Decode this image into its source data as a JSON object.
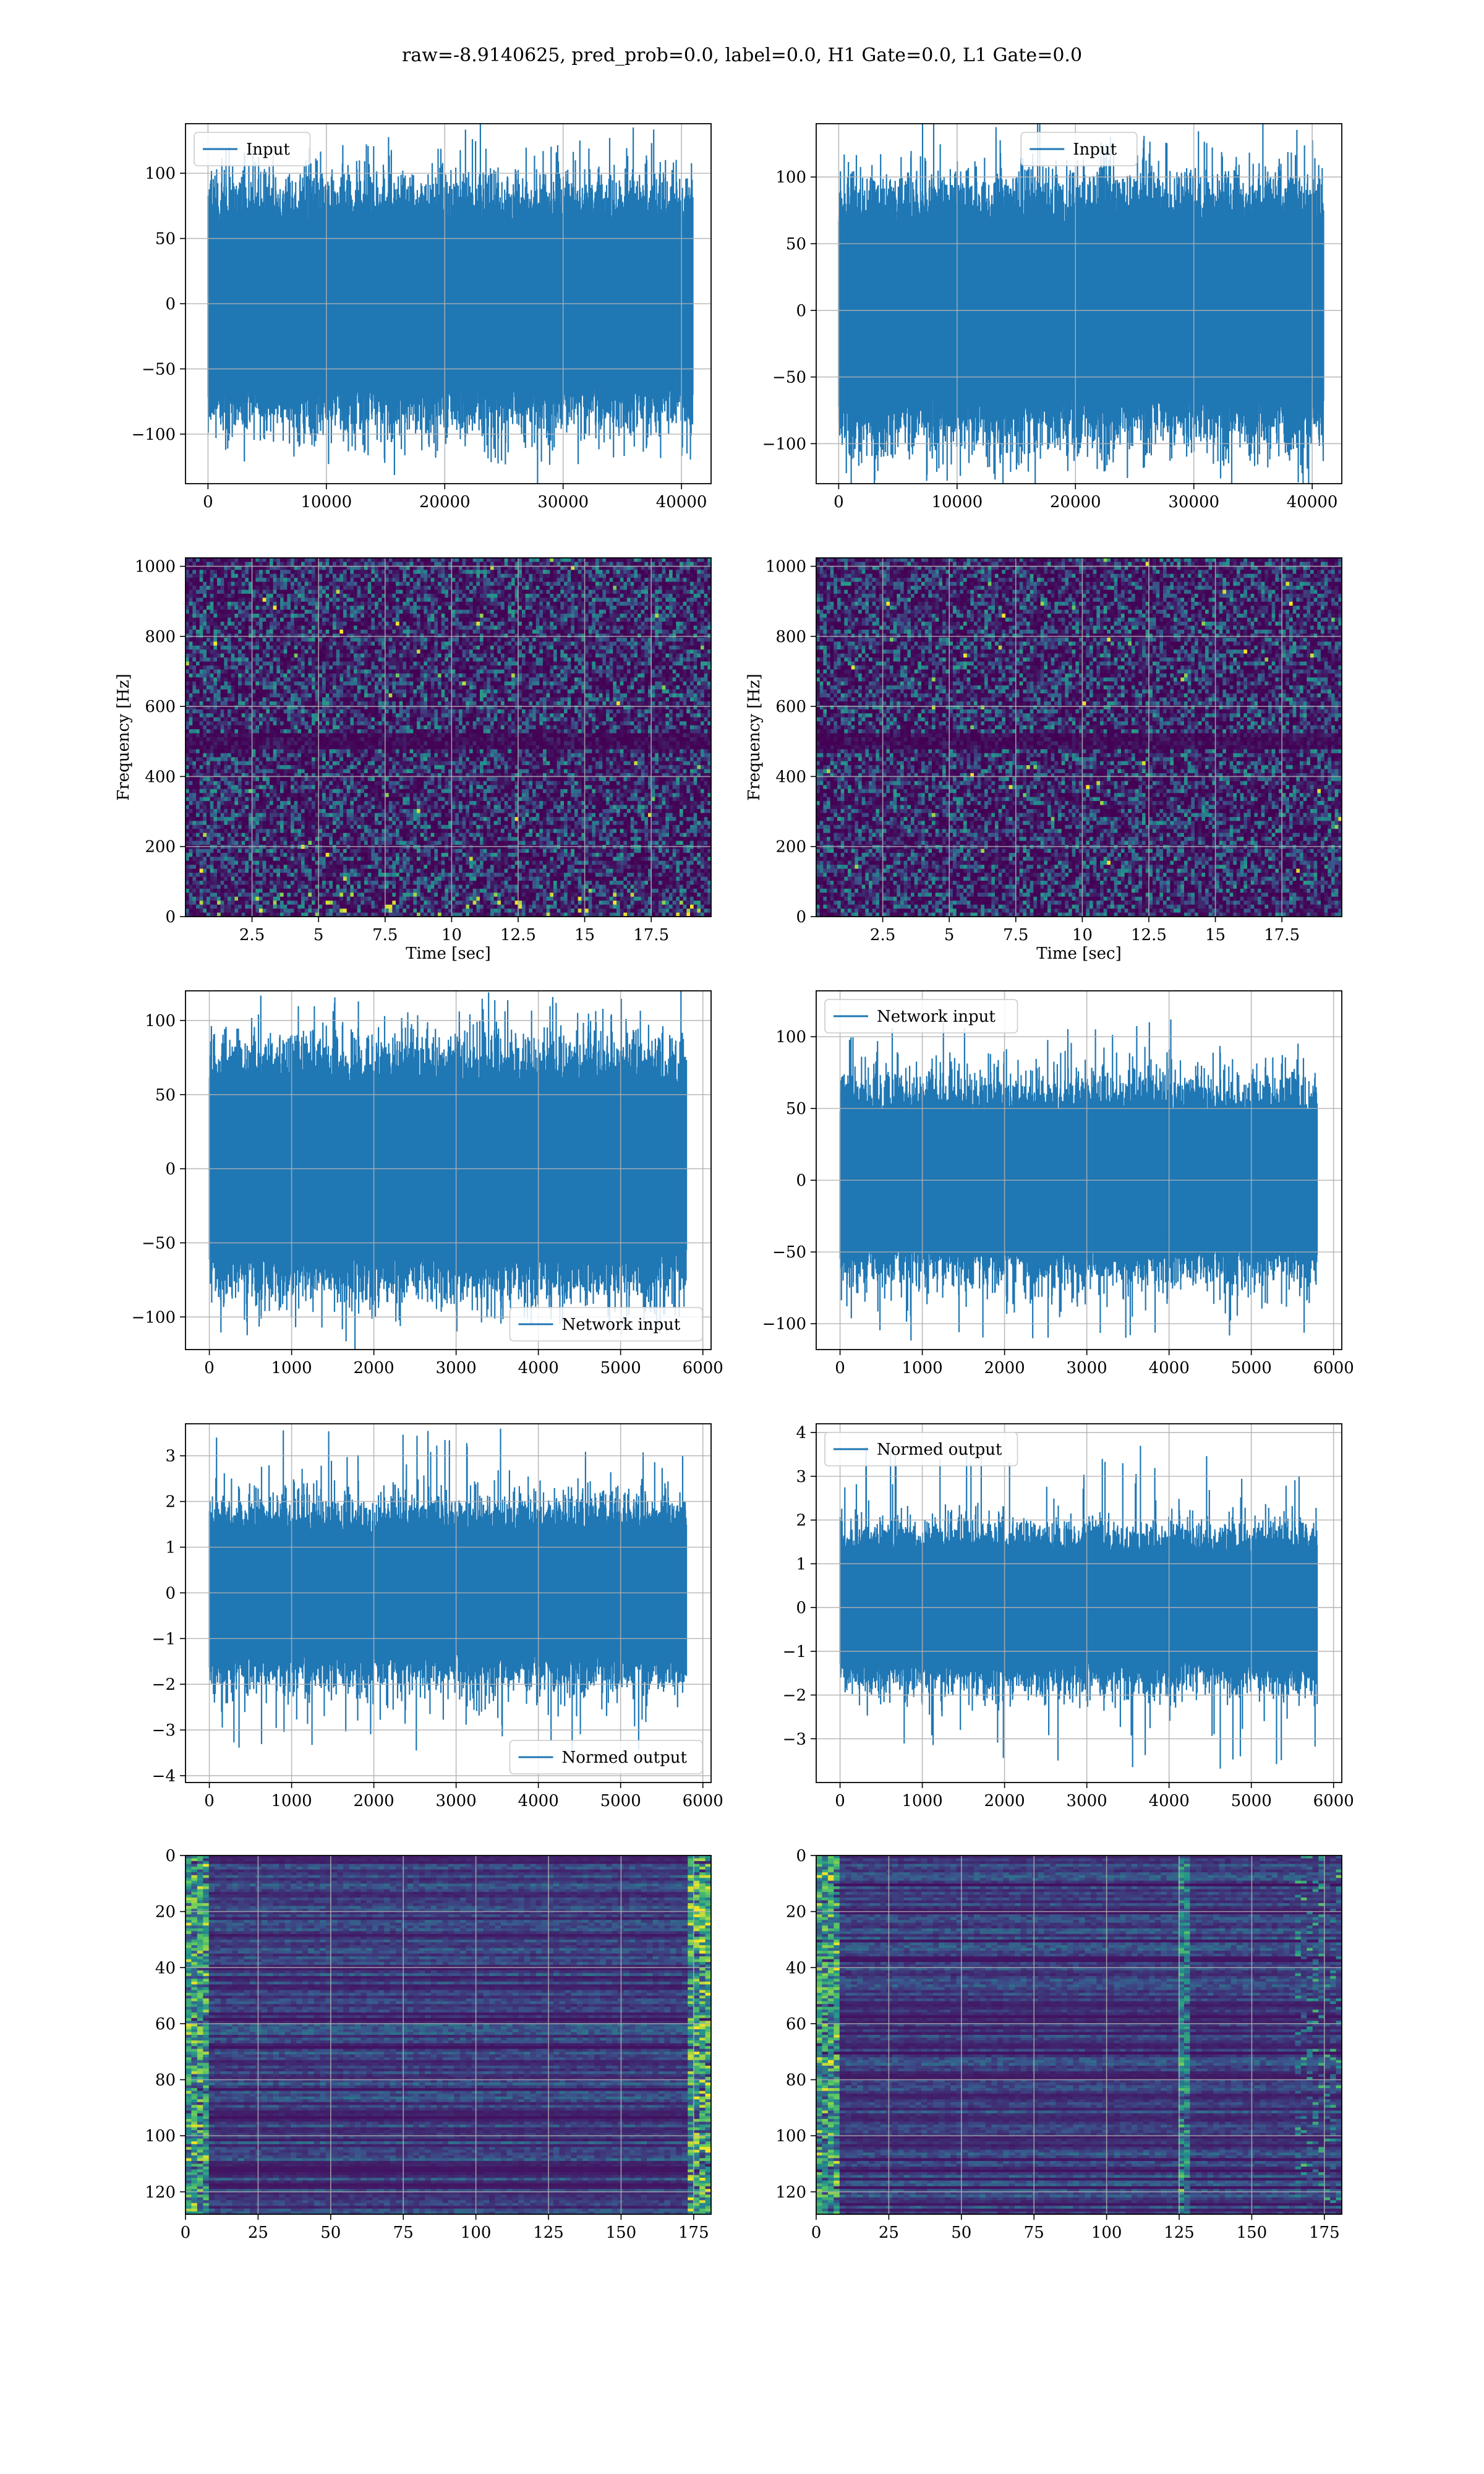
{
  "figure": {
    "title": "raw=-8.9140625, pred_prob=0.0, label=0.0, H1 Gate=0.0, L1 Gate=0.0"
  },
  "colors": {
    "line": "#1f77b4",
    "grid": "#b0b0b0",
    "axis": "#000000",
    "background": "#ffffff",
    "viridis": [
      "#440154",
      "#3b528b",
      "#21918c",
      "#5ec962",
      "#fde725"
    ]
  },
  "chart_data": [
    {
      "id": "h1-input",
      "type": "line",
      "row": 0,
      "col": 0,
      "title": "",
      "xlabel": "",
      "ylabel": "",
      "xlim": [
        -1900,
        42500
      ],
      "ylim": [
        -138,
        138
      ],
      "xticks": [
        0,
        10000,
        20000,
        30000,
        40000
      ],
      "yticks": [
        -100,
        -50,
        0,
        50,
        100
      ],
      "grid": true,
      "legend": "top-left",
      "series": [
        {
          "name": "Input",
          "n_points": 40960,
          "x_range": [
            0,
            40960
          ],
          "core_amplitude": 62,
          "peak_amplitude": 125
        }
      ]
    },
    {
      "id": "l1-input",
      "type": "line",
      "row": 0,
      "col": 1,
      "title": "",
      "xlabel": "",
      "ylabel": "",
      "xlim": [
        -1900,
        42500
      ],
      "ylim": [
        -130,
        140
      ],
      "xticks": [
        0,
        10000,
        20000,
        30000,
        40000
      ],
      "yticks": [
        -100,
        -50,
        0,
        50,
        100
      ],
      "grid": true,
      "legend": "top-center",
      "series": [
        {
          "name": "Input",
          "n_points": 40960,
          "x_range": [
            0,
            40960
          ],
          "core_amplitude": 65,
          "peak_amplitude": 128
        }
      ]
    },
    {
      "id": "h1-spectrogram",
      "type": "heatmap",
      "row": 1,
      "col": 0,
      "title": "",
      "xlabel": "Time [sec]",
      "ylabel": "Frequency [Hz]",
      "xlim": [
        0,
        19.75
      ],
      "ylim": [
        0,
        1024
      ],
      "xticks": [
        2.5,
        5.0,
        7.5,
        10.0,
        12.5,
        15.0,
        17.5
      ],
      "yticks": [
        0,
        200,
        400,
        600,
        800,
        1000
      ],
      "grid": true,
      "colormap": "viridis",
      "features": [
        "low-power band near 500 Hz",
        "occasional bright pixels near 50 Hz"
      ]
    },
    {
      "id": "l1-spectrogram",
      "type": "heatmap",
      "row": 1,
      "col": 1,
      "title": "",
      "xlabel": "Time [sec]",
      "ylabel": "Frequency [Hz]",
      "xlim": [
        0,
        19.75
      ],
      "ylim": [
        0,
        1024
      ],
      "xticks": [
        2.5,
        5.0,
        7.5,
        10.0,
        12.5,
        15.0,
        17.5
      ],
      "yticks": [
        0,
        200,
        400,
        600,
        800,
        1000
      ],
      "grid": true,
      "colormap": "viridis",
      "features": [
        "low-power band near 500 Hz",
        "scattered bright pixels"
      ]
    },
    {
      "id": "h1-network-input",
      "type": "line",
      "row": 2,
      "col": 0,
      "title": "",
      "xlabel": "",
      "ylabel": "",
      "xlim": [
        -290,
        6100
      ],
      "ylim": [
        -122,
        120
      ],
      "xticks": [
        0,
        1000,
        2000,
        3000,
        4000,
        5000,
        6000
      ],
      "yticks": [
        -100,
        -50,
        0,
        50,
        100
      ],
      "grid": true,
      "legend": "bottom-right",
      "series": [
        {
          "name": "Network input",
          "n_points": 5800,
          "x_range": [
            0,
            5800
          ],
          "core_amplitude": 55,
          "peak_amplitude": 115
        }
      ]
    },
    {
      "id": "l1-network-input",
      "type": "line",
      "row": 2,
      "col": 1,
      "title": "",
      "xlabel": "",
      "ylabel": "",
      "xlim": [
        -290,
        6100
      ],
      "ylim": [
        -118,
        132
      ],
      "xticks": [
        0,
        1000,
        2000,
        3000,
        4000,
        5000,
        6000
      ],
      "yticks": [
        -100,
        -50,
        0,
        50,
        100
      ],
      "grid": true,
      "legend": "top-left",
      "series": [
        {
          "name": "Network input",
          "n_points": 5800,
          "x_range": [
            0,
            5800
          ],
          "core_amplitude": 45,
          "peak_amplitude": 112
        }
      ]
    },
    {
      "id": "h1-normed-output",
      "type": "line",
      "row": 3,
      "col": 0,
      "title": "",
      "xlabel": "",
      "ylabel": "",
      "xlim": [
        -290,
        6100
      ],
      "ylim": [
        -4.15,
        3.7
      ],
      "xticks": [
        0,
        1000,
        2000,
        3000,
        4000,
        5000,
        6000
      ],
      "yticks": [
        -4,
        -3,
        -2,
        -1,
        0,
        1,
        2,
        3
      ],
      "grid": true,
      "legend": "bottom-right",
      "series": [
        {
          "name": "Normed output",
          "n_points": 5800,
          "x_range": [
            0,
            5800
          ],
          "core_amplitude": 1.3,
          "peak_amplitude": 3.6
        }
      ]
    },
    {
      "id": "l1-normed-output",
      "type": "line",
      "row": 3,
      "col": 1,
      "title": "",
      "xlabel": "",
      "ylabel": "",
      "xlim": [
        -290,
        6100
      ],
      "ylim": [
        -4.0,
        4.2
      ],
      "xticks": [
        0,
        1000,
        2000,
        3000,
        4000,
        5000,
        6000
      ],
      "yticks": [
        -3,
        -2,
        -1,
        0,
        1,
        2,
        3,
        4
      ],
      "grid": true,
      "legend": "top-left",
      "series": [
        {
          "name": "Normed output",
          "n_points": 5800,
          "x_range": [
            0,
            5800
          ],
          "core_amplitude": 1.2,
          "peak_amplitude": 3.8
        }
      ]
    },
    {
      "id": "h1-feature-map",
      "type": "heatmap",
      "row": 4,
      "col": 0,
      "title": "",
      "xlabel": "",
      "ylabel": "",
      "xlim": [
        0,
        181
      ],
      "ylim": [
        128,
        0
      ],
      "xticks": [
        0,
        25,
        50,
        75,
        100,
        125,
        150,
        175
      ],
      "yticks": [
        0,
        20,
        40,
        60,
        80,
        100,
        120
      ],
      "grid": true,
      "colormap": "viridis",
      "features": [
        "horizontal channel stripes",
        "bright column at x=175",
        "bright edge at x=0"
      ]
    },
    {
      "id": "l1-feature-map",
      "type": "heatmap",
      "row": 4,
      "col": 1,
      "title": "",
      "xlabel": "",
      "ylabel": "",
      "xlim": [
        0,
        181
      ],
      "ylim": [
        128,
        0
      ],
      "xticks": [
        0,
        25,
        50,
        75,
        100,
        125,
        150,
        175
      ],
      "yticks": [
        0,
        20,
        40,
        60,
        80,
        100,
        120
      ],
      "grid": true,
      "colormap": "viridis",
      "features": [
        "horizontal channel stripes",
        "bright column at x=125",
        "bright edge at x=0"
      ]
    }
  ]
}
